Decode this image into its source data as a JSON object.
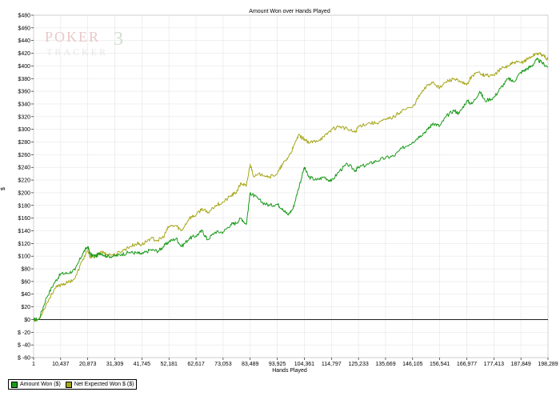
{
  "chart_data": {
    "type": "line",
    "title": "Amount Won over Hands Played",
    "xlabel": "Hands Played",
    "ylabel": "$",
    "xlim": [
      1,
      198289
    ],
    "ylim": [
      -60,
      480
    ],
    "y_ticks": [
      -60,
      -40,
      -20,
      0,
      20,
      40,
      60,
      80,
      100,
      120,
      140,
      160,
      180,
      200,
      220,
      240,
      260,
      280,
      300,
      320,
      340,
      360,
      380,
      400,
      420,
      440,
      460,
      480
    ],
    "y_tick_labels": [
      "$ -60",
      "$ -40",
      "$ -20",
      "$0",
      "$20",
      "$40",
      "$60",
      "$80",
      "$100",
      "$120",
      "$140",
      "$160",
      "$180",
      "$200",
      "$220",
      "$240",
      "$260",
      "$280",
      "$300",
      "$320",
      "$340",
      "$360",
      "$380",
      "$400",
      "$420",
      "$440",
      "$460",
      "$480"
    ],
    "x_tick_labels": [
      "1",
      "10,437",
      "20,873",
      "31,309",
      "41,745",
      "52,181",
      "62,617",
      "73,053",
      "83,489",
      "93,925",
      "104,361",
      "114,797",
      "125,233",
      "135,669",
      "146,105",
      "156,541",
      "166,977",
      "177,413",
      "187,849",
      "198,289"
    ],
    "grid": true,
    "legend_position": "bottom-left",
    "colors": {
      "amount_won": "#1a9a1a",
      "net_expected": "#a6a61a"
    },
    "series": [
      {
        "name": "Amount Won ($)",
        "x": [
          1,
          2000,
          5000,
          8000,
          10437,
          13000,
          16000,
          19000,
          20873,
          22000,
          24000,
          26000,
          28000,
          31309,
          34000,
          37000,
          40000,
          41745,
          45000,
          48000,
          50000,
          52181,
          55000,
          57000,
          60000,
          62617,
          65000,
          67000,
          70000,
          73053,
          76000,
          78000,
          80000,
          82000,
          83489,
          85000,
          88000,
          91000,
          93925,
          96000,
          98000,
          100000,
          102000,
          104361,
          106000,
          109000,
          112000,
          114797,
          118000,
          121000,
          124000,
          125233,
          129000,
          132000,
          135669,
          139000,
          142000,
          146105,
          149000,
          152000,
          154000,
          156541,
          159000,
          162000,
          164000,
          166977,
          169000,
          172000,
          174000,
          177413,
          180000,
          183000,
          185000,
          187849,
          190000,
          192000,
          194000,
          196000,
          198289
        ],
        "y": [
          0,
          0,
          35,
          58,
          72,
          73,
          78,
          105,
          115,
          102,
          100,
          105,
          100,
          100,
          103,
          106,
          105,
          103,
          110,
          108,
          115,
          123,
          128,
          115,
          128,
          132,
          140,
          126,
          138,
          138,
          150,
          152,
          160,
          150,
          200,
          195,
          185,
          180,
          182,
          175,
          165,
          175,
          205,
          240,
          225,
          220,
          225,
          218,
          235,
          245,
          235,
          240,
          245,
          250,
          255,
          258,
          270,
          280,
          290,
          300,
          310,
          305,
          320,
          330,
          325,
          345,
          340,
          360,
          345,
          350,
          365,
          380,
          375,
          390,
          395,
          400,
          410,
          405,
          398
        ]
      },
      {
        "name": "Net Expected Won $ ($)",
        "x": [
          1,
          2000,
          5000,
          8000,
          10437,
          13000,
          16000,
          19000,
          20873,
          22000,
          24000,
          26000,
          28000,
          31309,
          34000,
          37000,
          40000,
          41745,
          45000,
          48000,
          50000,
          52181,
          55000,
          57000,
          60000,
          62617,
          65000,
          67000,
          70000,
          73053,
          76000,
          78000,
          80000,
          82000,
          83489,
          85000,
          88000,
          91000,
          93925,
          96000,
          98000,
          100000,
          102000,
          104361,
          106000,
          109000,
          112000,
          114797,
          118000,
          121000,
          124000,
          125233,
          129000,
          132000,
          135669,
          139000,
          142000,
          146105,
          149000,
          152000,
          154000,
          156541,
          159000,
          162000,
          164000,
          166977,
          169000,
          172000,
          174000,
          177413,
          180000,
          183000,
          185000,
          187849,
          190000,
          192000,
          194000,
          196000,
          198289
        ],
        "y": [
          0,
          0,
          25,
          48,
          55,
          58,
          65,
          95,
          108,
          98,
          100,
          108,
          103,
          102,
          108,
          115,
          120,
          118,
          128,
          125,
          130,
          147,
          148,
          140,
          160,
          165,
          175,
          168,
          180,
          185,
          195,
          200,
          215,
          210,
          245,
          225,
          230,
          225,
          230,
          245,
          255,
          270,
          290,
          285,
          278,
          282,
          288,
          300,
          305,
          300,
          295,
          305,
          310,
          310,
          315,
          320,
          330,
          335,
          355,
          370,
          375,
          365,
          375,
          380,
          375,
          370,
          385,
          390,
          385,
          385,
          395,
          400,
          405,
          405,
          410,
          415,
          420,
          418,
          410
        ]
      }
    ]
  },
  "legend": {
    "amount_won_label": "Amount Won ($)",
    "net_expected_label": "Net Expected Won $ ($)"
  },
  "watermark": {
    "line1": "POKER",
    "line1_suffix": "3",
    "line2": "TRACKER"
  }
}
